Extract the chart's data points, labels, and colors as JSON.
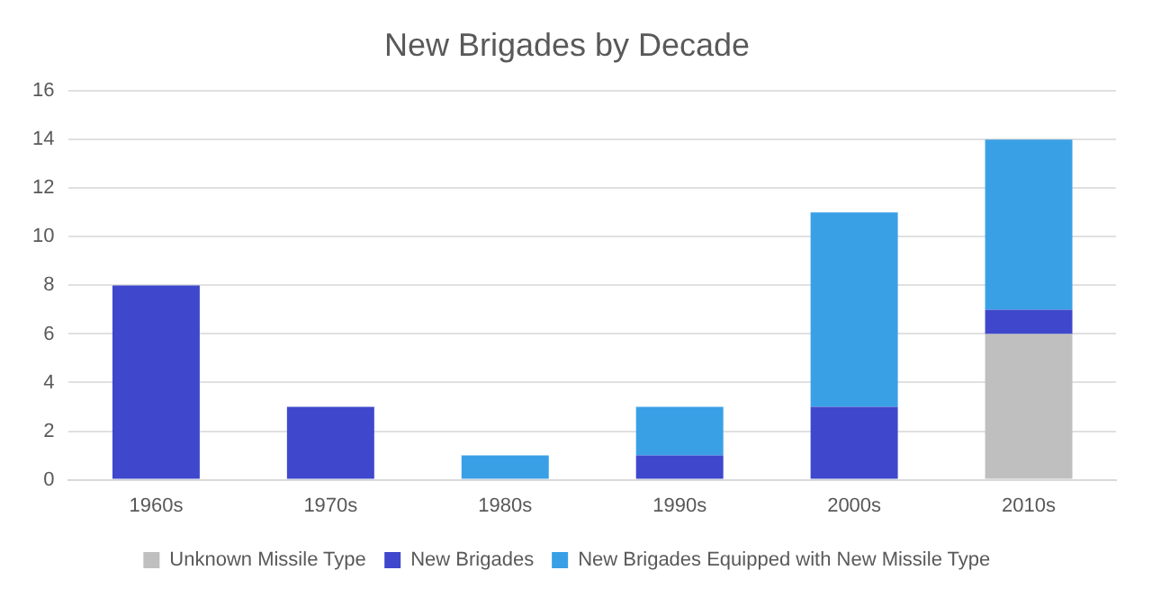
{
  "chart_data": {
    "type": "bar",
    "title": "New Brigades by Decade",
    "categories": [
      "1960s",
      "1970s",
      "1980s",
      "1990s",
      "2000s",
      "2010s"
    ],
    "stacked": true,
    "series": [
      {
        "name": "Unknown Missile Type",
        "color": "#bfbfbf",
        "values": [
          0,
          0,
          0,
          0,
          0,
          6
        ]
      },
      {
        "name": "New Brigades",
        "color": "#3f48cc",
        "values": [
          8,
          3,
          0,
          1,
          3,
          1
        ]
      },
      {
        "name": "New Brigades Equipped with New Missile Type",
        "color": "#3aa0e6",
        "values": [
          0,
          0,
          1,
          2,
          8,
          7
        ]
      }
    ],
    "ylim": [
      0,
      16
    ],
    "yticks": [
      0,
      2,
      4,
      6,
      8,
      10,
      12,
      14,
      16
    ],
    "grid": "y",
    "legend": "bottom"
  }
}
